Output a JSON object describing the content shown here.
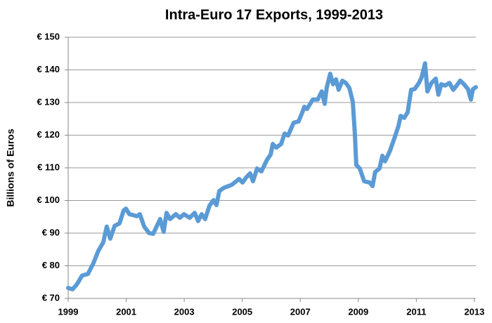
{
  "chart_data": {
    "type": "line",
    "title": "Intra-Euro 17 Exports, 1999-2013",
    "y_label": "Billions of Euros",
    "color": "#5b9bd5",
    "grid": true,
    "xlim": [
      1999,
      2013.05
    ],
    "xticks": [
      1999,
      2001,
      2003,
      2005,
      2007,
      2009,
      2011,
      2013
    ],
    "ylim": [
      70,
      150
    ],
    "yticks": [
      {
        "value": 70,
        "label": "€ 70"
      },
      {
        "value": 80,
        "label": "€ 80"
      },
      {
        "value": 90,
        "label": "€ 90"
      },
      {
        "value": 100,
        "label": "€ 100"
      },
      {
        "value": 110,
        "label": "€ 110"
      },
      {
        "value": 120,
        "label": "€ 120"
      },
      {
        "value": 130,
        "label": "€ 130"
      },
      {
        "value": 140,
        "label": "€ 140"
      },
      {
        "value": 150,
        "label": "€ 150"
      }
    ],
    "x": [
      1999.0,
      1999.15,
      1999.3,
      1999.48,
      1999.68,
      1999.87,
      2000.04,
      2000.21,
      2000.33,
      2000.45,
      2000.6,
      2000.77,
      2000.91,
      2000.99,
      2001.11,
      2001.37,
      2001.47,
      2001.62,
      2001.79,
      2001.93,
      2002.17,
      2002.29,
      2002.39,
      2002.51,
      2002.71,
      2002.85,
      2002.99,
      2003.19,
      2003.36,
      2003.48,
      2003.6,
      2003.72,
      2003.87,
      2004.01,
      2004.11,
      2004.21,
      2004.35,
      2004.64,
      2004.89,
      2005.01,
      2005.13,
      2005.27,
      2005.37,
      2005.51,
      2005.66,
      2005.85,
      2005.98,
      2006.05,
      2006.17,
      2006.34,
      2006.46,
      2006.58,
      2006.77,
      2006.94,
      2007.07,
      2007.14,
      2007.23,
      2007.43,
      2007.6,
      2007.74,
      2007.84,
      2007.91,
      2008.03,
      2008.13,
      2008.23,
      2008.32,
      2008.45,
      2008.57,
      2008.69,
      2008.81,
      2008.88,
      2008.93,
      2009.05,
      2009.2,
      2009.39,
      2009.49,
      2009.58,
      2009.73,
      2009.83,
      2009.92,
      2010.09,
      2010.26,
      2010.38,
      2010.46,
      2010.58,
      2010.7,
      2010.82,
      2010.94,
      2011.09,
      2011.18,
      2011.3,
      2011.38,
      2011.52,
      2011.67,
      2011.76,
      2011.86,
      2011.99,
      2012.14,
      2012.27,
      2012.39,
      2012.51,
      2012.64,
      2012.78,
      2012.88,
      2012.95,
      2013.05
    ],
    "values": [
      73.2,
      72.8,
      74.3,
      77,
      77.5,
      80.8,
      84.6,
      87.2,
      92,
      88.3,
      92.2,
      93,
      96.9,
      97.5,
      95.8,
      95.2,
      95.8,
      92,
      90,
      89.8,
      94.3,
      90.4,
      96.2,
      94.3,
      95.8,
      94.7,
      95.8,
      94.7,
      96.2,
      93.7,
      95.8,
      94.3,
      98.4,
      100.1,
      98.6,
      102.9,
      103.8,
      104.8,
      106.6,
      105.5,
      107,
      108.3,
      105.9,
      109.8,
      108.9,
      112.4,
      114.1,
      117.3,
      116.2,
      117.3,
      120.5,
      119.9,
      123.8,
      124.2,
      127,
      128.7,
      128,
      130.9,
      130.9,
      133.4,
      129.6,
      134.5,
      138.8,
      135.6,
      137.1,
      133.9,
      136.7,
      136,
      134.5,
      130.2,
      120.5,
      110.9,
      109.8,
      105.9,
      105.5,
      104.4,
      108.7,
      109.8,
      113.7,
      112,
      115.2,
      119.5,
      122.7,
      125.9,
      125.3,
      127,
      133.9,
      134.1,
      136,
      137.7,
      142,
      133.4,
      136,
      137.3,
      132.4,
      135.6,
      135.2,
      136,
      133.9,
      135.2,
      136.7,
      135.6,
      134.1,
      130.9,
      134.1,
      134.7
    ]
  }
}
